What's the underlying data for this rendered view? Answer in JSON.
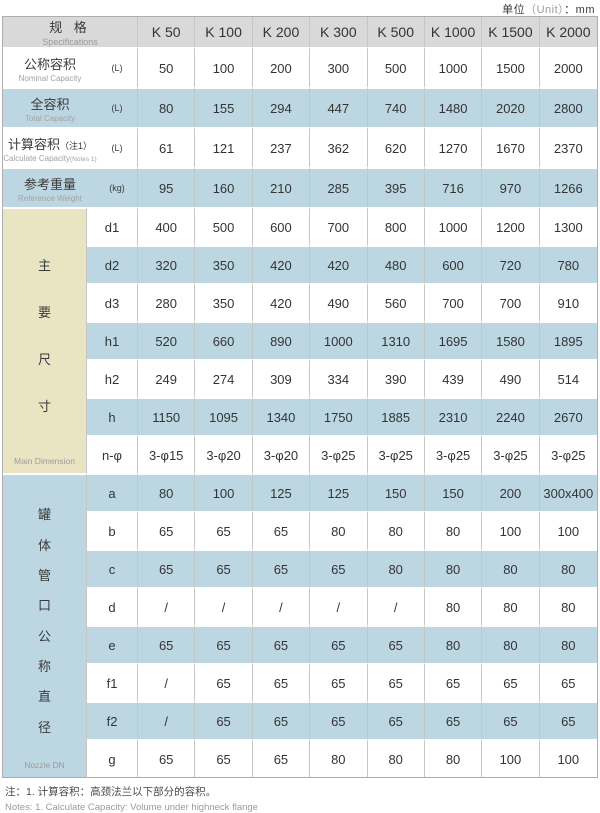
{
  "meta": {
    "unit_prefix": "单位",
    "unit_mid": "（Unit）",
    "unit_suffix": "：mm"
  },
  "colors": {
    "header_bg": "#d9d9d9",
    "stripe_bg": "#bdd7e2",
    "side_bg": "#e9e5c3",
    "grid_line": "#c6c6c6"
  },
  "table": {
    "header": {
      "title_cn": "规 格",
      "title_en": "Specifications",
      "columns": [
        "K 50",
        "K 100",
        "K 200",
        "K 300",
        "K 500",
        "K 1000",
        "K 1500",
        "K 2000"
      ]
    },
    "capacity_rows": [
      {
        "label_cn": "公称容积",
        "label_cn_note": "",
        "label_en": "Nominal Capacity",
        "label_en_note": "",
        "unit": "(L)",
        "values": [
          "50",
          "100",
          "200",
          "300",
          "500",
          "1000",
          "1500",
          "2000"
        ]
      },
      {
        "label_cn": "全容积",
        "label_cn_note": "",
        "label_en": "Total Capacity",
        "label_en_note": "",
        "unit": "(L)",
        "values": [
          "80",
          "155",
          "294",
          "447",
          "740",
          "1480",
          "2020",
          "2800"
        ]
      },
      {
        "label_cn": "计算容积",
        "label_cn_note": "（注1）",
        "label_en": "Calculate Capacity",
        "label_en_note": "(Notes 1)",
        "unit": "(L)",
        "values": [
          "61",
          "121",
          "237",
          "362",
          "620",
          "1270",
          "1670",
          "2370"
        ]
      },
      {
        "label_cn": "参考重量",
        "label_cn_note": "",
        "label_en": "Reference Weight",
        "label_en_note": "",
        "unit": "(kg)",
        "values": [
          "95",
          "160",
          "210",
          "285",
          "395",
          "716",
          "970",
          "1266"
        ]
      }
    ],
    "sections": [
      {
        "side_cn": [
          "主",
          "要",
          "尺",
          "寸"
        ],
        "side_en": "Main Dimension",
        "rows": [
          {
            "label": "d1",
            "values": [
              "400",
              "500",
              "600",
              "700",
              "800",
              "1000",
              "1200",
              "1300"
            ]
          },
          {
            "label": "d2",
            "values": [
              "320",
              "350",
              "420",
              "420",
              "480",
              "600",
              "720",
              "780"
            ]
          },
          {
            "label": "d3",
            "values": [
              "280",
              "350",
              "420",
              "490",
              "560",
              "700",
              "700",
              "910"
            ]
          },
          {
            "label": "h1",
            "values": [
              "520",
              "660",
              "890",
              "1000",
              "1310",
              "1695",
              "1580",
              "1895"
            ]
          },
          {
            "label": "h2",
            "values": [
              "249",
              "274",
              "309",
              "334",
              "390",
              "439",
              "490",
              "514"
            ]
          },
          {
            "label": "h",
            "values": [
              "1150",
              "1095",
              "1340",
              "1750",
              "1885",
              "2310",
              "2240",
              "2670"
            ]
          },
          {
            "label": "n-φ",
            "values": [
              "3-φ15",
              "3-φ20",
              "3-φ20",
              "3-φ25",
              "3-φ25",
              "3-φ25",
              "3-φ25",
              "3-φ25"
            ]
          }
        ]
      },
      {
        "side_cn": [
          "罐",
          "体",
          "管",
          "口",
          "公",
          "称",
          "直",
          "径"
        ],
        "side_en": "Nozzle DN",
        "rows": [
          {
            "label": "a",
            "values": [
              "80",
              "100",
              "125",
              "125",
              "150",
              "150",
              "200",
              "300x400"
            ]
          },
          {
            "label": "b",
            "values": [
              "65",
              "65",
              "65",
              "80",
              "80",
              "80",
              "100",
              "100"
            ]
          },
          {
            "label": "c",
            "values": [
              "65",
              "65",
              "65",
              "65",
              "80",
              "80",
              "80",
              "80"
            ]
          },
          {
            "label": "d",
            "values": [
              "/",
              "/",
              "/",
              "/",
              "/",
              "80",
              "80",
              "80"
            ]
          },
          {
            "label": "e",
            "values": [
              "65",
              "65",
              "65",
              "65",
              "65",
              "80",
              "80",
              "80"
            ]
          },
          {
            "label": "f1",
            "values": [
              "/",
              "65",
              "65",
              "65",
              "65",
              "65",
              "65",
              "65"
            ]
          },
          {
            "label": "f2",
            "values": [
              "/",
              "65",
              "65",
              "65",
              "65",
              "65",
              "65",
              "65"
            ]
          },
          {
            "label": "g",
            "values": [
              "65",
              "65",
              "65",
              "80",
              "80",
              "80",
              "100",
              "100"
            ]
          }
        ]
      }
    ]
  },
  "notes": {
    "cn": "注：1. 计算容积：高颈法兰以下部分的容积。",
    "en": "Notes: 1. Calculate Capacity: Volume under highneck flange"
  }
}
